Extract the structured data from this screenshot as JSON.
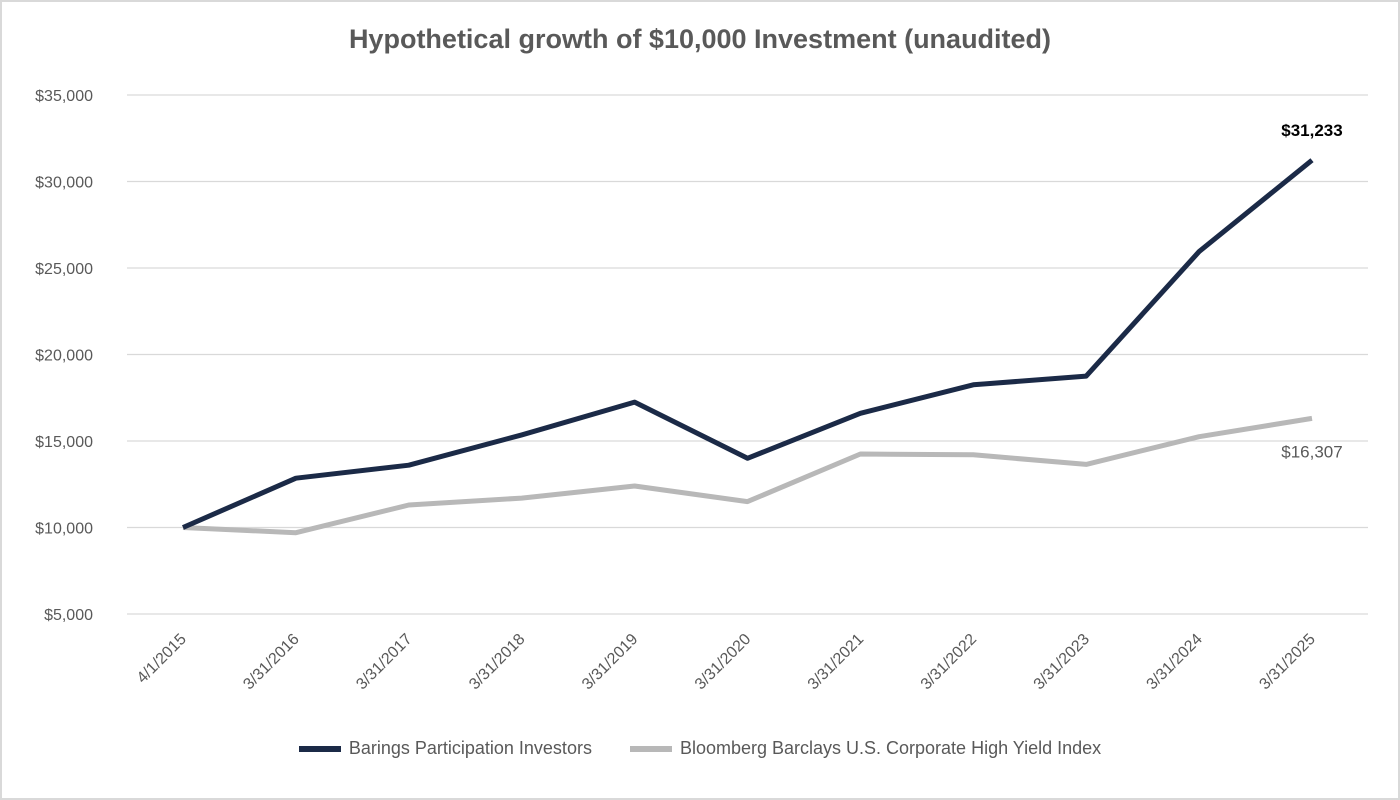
{
  "chart_data": {
    "type": "line",
    "title": "Hypothetical growth of $10,000 Investment (unaudited)",
    "xlabel": "",
    "ylabel": "",
    "x": [
      "4/1/2015",
      "3/31/2016",
      "3/31/2017",
      "3/31/2018",
      "3/31/2019",
      "3/31/2020",
      "3/31/2021",
      "3/31/2022",
      "3/31/2023",
      "3/31/2024",
      "3/31/2025"
    ],
    "ylim": [
      5000,
      35000
    ],
    "yticks": [
      5000,
      10000,
      15000,
      20000,
      25000,
      30000,
      35000
    ],
    "ytick_labels": [
      "$5,000",
      "$10,000",
      "$15,000",
      "$20,000",
      "$25,000",
      "$30,000",
      "$35,000"
    ],
    "grid": true,
    "legend_position": "bottom",
    "series": [
      {
        "name": "Barings Participation Investors",
        "color": "#1b2a47",
        "values": [
          10000,
          12850,
          13600,
          15350,
          17250,
          14000,
          16600,
          18250,
          18750,
          25950,
          31233
        ],
        "end_label": "$31,233",
        "end_label_color": "#000000"
      },
      {
        "name": "Bloomberg Barclays U.S. Corporate High Yield Index",
        "color": "#b8b8b8",
        "values": [
          10000,
          9700,
          11300,
          11700,
          12400,
          11500,
          14250,
          14200,
          13650,
          15250,
          16307
        ],
        "end_label": "$16,307",
        "end_label_color": "#595959"
      }
    ]
  }
}
